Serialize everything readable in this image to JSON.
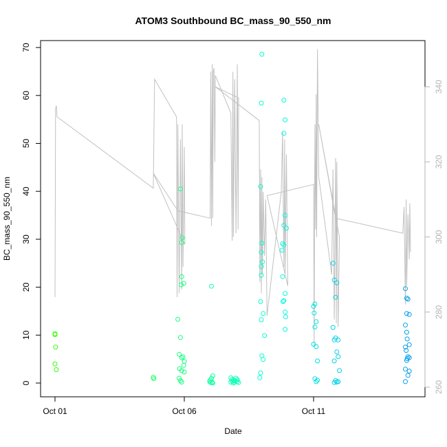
{
  "chart_data": {
    "type": "scatter",
    "title": "ATOM3 Southbound BC_mass_90_550_nm",
    "xlabel": "Date",
    "ylabel": "BC_mass_90_550_nm",
    "x_ticks": [
      "Oct 01",
      "Oct 06",
      "Oct 11"
    ],
    "y_ticks": [
      "0",
      "10",
      "20",
      "30",
      "40",
      "50",
      "60",
      "70"
    ],
    "y2_ticks": [
      "260",
      "280",
      "300",
      "320",
      "340"
    ],
    "xlim_days": [
      0.0,
      14.0
    ],
    "ylim": [
      0,
      70
    ],
    "y2lim": [
      260,
      340
    ],
    "colors": {
      "points_start": "#33ff00",
      "points_mid": "#00ffdd",
      "points_end": "#0099ee",
      "secondary_line": "#c0c0c0",
      "right_axis": "#b3b3b3"
    },
    "series": [
      {
        "style": "points",
        "points": [
          {
            "x": 0.0,
            "y": 10.3
          },
          {
            "x": 0.0,
            "y": 10.1
          },
          {
            "x": 0.02,
            "y": 7.5
          },
          {
            "x": 0.0,
            "y": 4.0
          },
          {
            "x": 0.05,
            "y": 2.8
          },
          {
            "x": 3.8,
            "y": 1.2
          },
          {
            "x": 3.82,
            "y": 0.9
          },
          {
            "x": 4.75,
            "y": 13.3
          },
          {
            "x": 4.8,
            "y": 6.0
          },
          {
            "x": 4.85,
            "y": 9.5
          },
          {
            "x": 4.85,
            "y": 40.5
          },
          {
            "x": 4.9,
            "y": 29.3
          },
          {
            "x": 4.92,
            "y": 30.3
          },
          {
            "x": 4.9,
            "y": 22.2
          },
          {
            "x": 4.88,
            "y": 20.5
          },
          {
            "x": 4.98,
            "y": 20.8
          },
          {
            "x": 4.95,
            "y": 5.5
          },
          {
            "x": 4.9,
            "y": 5.3
          },
          {
            "x": 5.0,
            "y": 4.5
          },
          {
            "x": 4.98,
            "y": 3.7
          },
          {
            "x": 4.82,
            "y": 3.0
          },
          {
            "x": 4.9,
            "y": 2.6
          },
          {
            "x": 5.0,
            "y": 2.3
          },
          {
            "x": 4.8,
            "y": 1.0
          },
          {
            "x": 4.85,
            "y": 0.5
          },
          {
            "x": 4.9,
            "y": 0.2
          },
          {
            "x": 6.05,
            "y": 20.2
          },
          {
            "x": 6.1,
            "y": 1.5
          },
          {
            "x": 6.05,
            "y": 1.0
          },
          {
            "x": 6.0,
            "y": 0.6
          },
          {
            "x": 5.98,
            "y": 0.3
          },
          {
            "x": 6.02,
            "y": 0.1
          },
          {
            "x": 6.08,
            "y": 0.2
          },
          {
            "x": 6.1,
            "y": 0.0
          },
          {
            "x": 6.8,
            "y": 1.1
          },
          {
            "x": 6.85,
            "y": 0.8
          },
          {
            "x": 6.9,
            "y": 0.6
          },
          {
            "x": 6.95,
            "y": 0.5
          },
          {
            "x": 7.0,
            "y": 1.0
          },
          {
            "x": 7.05,
            "y": 0.3
          },
          {
            "x": 7.1,
            "y": 0.1
          },
          {
            "x": 6.9,
            "y": 0.0
          },
          {
            "x": 6.8,
            "y": 0.2
          },
          {
            "x": 6.85,
            "y": 0.4
          },
          {
            "x": 6.95,
            "y": 0.2
          },
          {
            "x": 7.05,
            "y": 0.7
          },
          {
            "x": 8.0,
            "y": 68.6
          },
          {
            "x": 7.98,
            "y": 58.4
          },
          {
            "x": 7.95,
            "y": 41.0
          },
          {
            "x": 8.0,
            "y": 29.2
          },
          {
            "x": 7.98,
            "y": 27.3
          },
          {
            "x": 8.02,
            "y": 25.3
          },
          {
            "x": 7.98,
            "y": 24.3
          },
          {
            "x": 7.98,
            "y": 22.5
          },
          {
            "x": 7.95,
            "y": 17.0
          },
          {
            "x": 8.05,
            "y": 14.5
          },
          {
            "x": 7.98,
            "y": 13.2
          },
          {
            "x": 8.1,
            "y": 9.9
          },
          {
            "x": 8.0,
            "y": 5.7
          },
          {
            "x": 8.05,
            "y": 4.9
          },
          {
            "x": 7.95,
            "y": 2.1
          },
          {
            "x": 7.92,
            "y": 1.1
          },
          {
            "x": 8.85,
            "y": 59.0
          },
          {
            "x": 8.9,
            "y": 54.9
          },
          {
            "x": 8.85,
            "y": 52.1
          },
          {
            "x": 8.9,
            "y": 35.0
          },
          {
            "x": 8.85,
            "y": 32.9
          },
          {
            "x": 8.95,
            "y": 32.3
          },
          {
            "x": 8.8,
            "y": 29.1
          },
          {
            "x": 8.85,
            "y": 28.8
          },
          {
            "x": 8.78,
            "y": 27.7
          },
          {
            "x": 8.8,
            "y": 22.2
          },
          {
            "x": 8.9,
            "y": 18.7
          },
          {
            "x": 8.85,
            "y": 17.2
          },
          {
            "x": 8.82,
            "y": 17.0
          },
          {
            "x": 8.9,
            "y": 14.8
          },
          {
            "x": 8.92,
            "y": 13.8
          },
          {
            "x": 8.9,
            "y": 11.2
          },
          {
            "x": 10.05,
            "y": 16.5
          },
          {
            "x": 10.0,
            "y": 16.0
          },
          {
            "x": 10.02,
            "y": 14.6
          },
          {
            "x": 10.1,
            "y": 12.8
          },
          {
            "x": 10.05,
            "y": 11.7
          },
          {
            "x": 10.0,
            "y": 8.1
          },
          {
            "x": 10.1,
            "y": 7.6
          },
          {
            "x": 10.15,
            "y": 4.6
          },
          {
            "x": 10.05,
            "y": 0.9
          },
          {
            "x": 10.1,
            "y": 0.3
          },
          {
            "x": 10.15,
            "y": 0.6
          },
          {
            "x": 10.75,
            "y": 25.0
          },
          {
            "x": 10.8,
            "y": 21.5
          },
          {
            "x": 10.9,
            "y": 20.9
          },
          {
            "x": 10.85,
            "y": 17.9
          },
          {
            "x": 10.75,
            "y": 11.6
          },
          {
            "x": 10.85,
            "y": 9.4
          },
          {
            "x": 10.8,
            "y": 9.0
          },
          {
            "x": 10.95,
            "y": 9.0
          },
          {
            "x": 10.9,
            "y": 6.5
          },
          {
            "x": 10.95,
            "y": 5.5
          },
          {
            "x": 10.8,
            "y": 4.6
          },
          {
            "x": 11.0,
            "y": 2.6
          },
          {
            "x": 10.85,
            "y": 0.5
          },
          {
            "x": 10.9,
            "y": 0.2
          },
          {
            "x": 10.8,
            "y": 0.1
          },
          {
            "x": 10.95,
            "y": 0.3
          },
          {
            "x": 13.55,
            "y": 19.7
          },
          {
            "x": 13.6,
            "y": 17.7
          },
          {
            "x": 13.65,
            "y": 17.5
          },
          {
            "x": 13.6,
            "y": 14.5
          },
          {
            "x": 13.7,
            "y": 14.3
          },
          {
            "x": 13.55,
            "y": 12.1
          },
          {
            "x": 13.6,
            "y": 10.6
          },
          {
            "x": 13.62,
            "y": 9.2
          },
          {
            "x": 13.7,
            "y": 8.0
          },
          {
            "x": 13.55,
            "y": 7.5
          },
          {
            "x": 13.58,
            "y": 6.8
          },
          {
            "x": 13.65,
            "y": 5.5
          },
          {
            "x": 13.7,
            "y": 5.3
          },
          {
            "x": 13.62,
            "y": 5.1
          },
          {
            "x": 13.6,
            "y": 4.7
          },
          {
            "x": 13.55,
            "y": 2.9
          },
          {
            "x": 13.7,
            "y": 2.5
          },
          {
            "x": 13.65,
            "y": 1.6
          },
          {
            "x": 13.55,
            "y": 0.3
          }
        ]
      },
      {
        "style": "line",
        "axis": "right",
        "points": [
          {
            "x": 0.0,
            "y": 284
          },
          {
            "x": 0.02,
            "y": 334
          },
          {
            "x": 0.05,
            "y": 335
          },
          {
            "x": 0.08,
            "y": 332
          },
          {
            "x": 3.8,
            "y": 313
          },
          {
            "x": 3.85,
            "y": 342
          },
          {
            "x": 4.7,
            "y": 332
          },
          {
            "x": 4.72,
            "y": 284
          },
          {
            "x": 4.75,
            "y": 330
          },
          {
            "x": 4.8,
            "y": 285
          },
          {
            "x": 4.85,
            "y": 326
          },
          {
            "x": 4.9,
            "y": 286
          },
          {
            "x": 4.92,
            "y": 330
          },
          {
            "x": 4.95,
            "y": 292
          },
          {
            "x": 5.0,
            "y": 324
          },
          {
            "x": 5.02,
            "y": 298
          },
          {
            "x": 3.8,
            "y": 317
          },
          {
            "x": 4.75,
            "y": 307
          },
          {
            "x": 6.0,
            "y": 305
          },
          {
            "x": 6.02,
            "y": 344
          },
          {
            "x": 6.05,
            "y": 303
          },
          {
            "x": 6.08,
            "y": 346
          },
          {
            "x": 6.1,
            "y": 305
          },
          {
            "x": 6.12,
            "y": 344
          },
          {
            "x": 6.15,
            "y": 345
          },
          {
            "x": 6.18,
            "y": 320
          },
          {
            "x": 6.2,
            "y": 343
          },
          {
            "x": 6.8,
            "y": 333
          },
          {
            "x": 6.85,
            "y": 299
          },
          {
            "x": 6.88,
            "y": 344
          },
          {
            "x": 6.9,
            "y": 300
          },
          {
            "x": 6.95,
            "y": 342
          },
          {
            "x": 7.0,
            "y": 301
          },
          {
            "x": 7.05,
            "y": 346
          },
          {
            "x": 7.08,
            "y": 302
          },
          {
            "x": 7.1,
            "y": 337
          },
          {
            "x": 6.2,
            "y": 340
          },
          {
            "x": 7.9,
            "y": 331
          },
          {
            "x": 7.92,
            "y": 288
          },
          {
            "x": 7.95,
            "y": 318
          },
          {
            "x": 7.98,
            "y": 285
          },
          {
            "x": 8.0,
            "y": 316
          },
          {
            "x": 8.02,
            "y": 290
          },
          {
            "x": 8.05,
            "y": 312
          },
          {
            "x": 8.1,
            "y": 295
          },
          {
            "x": 8.15,
            "y": 310
          },
          {
            "x": 8.2,
            "y": 279
          },
          {
            "x": 8.75,
            "y": 312
          },
          {
            "x": 8.8,
            "y": 328
          },
          {
            "x": 8.85,
            "y": 292
          },
          {
            "x": 8.88,
            "y": 326
          },
          {
            "x": 8.9,
            "y": 290
          },
          {
            "x": 8.95,
            "y": 322
          },
          {
            "x": 9.0,
            "y": 287
          },
          {
            "x": 8.2,
            "y": 311
          },
          {
            "x": 10.0,
            "y": 314
          },
          {
            "x": 10.02,
            "y": 271
          },
          {
            "x": 10.05,
            "y": 330
          },
          {
            "x": 10.08,
            "y": 302
          },
          {
            "x": 10.1,
            "y": 338
          },
          {
            "x": 10.12,
            "y": 300
          },
          {
            "x": 10.15,
            "y": 350
          },
          {
            "x": 10.2,
            "y": 316
          },
          {
            "x": 10.7,
            "y": 290
          },
          {
            "x": 10.75,
            "y": 318
          },
          {
            "x": 10.8,
            "y": 278
          },
          {
            "x": 10.85,
            "y": 321
          },
          {
            "x": 10.88,
            "y": 277
          },
          {
            "x": 10.9,
            "y": 320
          },
          {
            "x": 10.95,
            "y": 276
          },
          {
            "x": 11.0,
            "y": 300
          },
          {
            "x": 10.2,
            "y": 330
          },
          {
            "x": 10.85,
            "y": 305
          },
          {
            "x": 13.45,
            "y": 301
          },
          {
            "x": 13.5,
            "y": 308
          },
          {
            "x": 13.55,
            "y": 282
          },
          {
            "x": 13.58,
            "y": 310
          },
          {
            "x": 13.6,
            "y": 287
          },
          {
            "x": 13.65,
            "y": 306
          },
          {
            "x": 13.7,
            "y": 294
          },
          {
            "x": 13.72,
            "y": 309
          },
          {
            "x": 13.75,
            "y": 296
          }
        ]
      }
    ]
  }
}
